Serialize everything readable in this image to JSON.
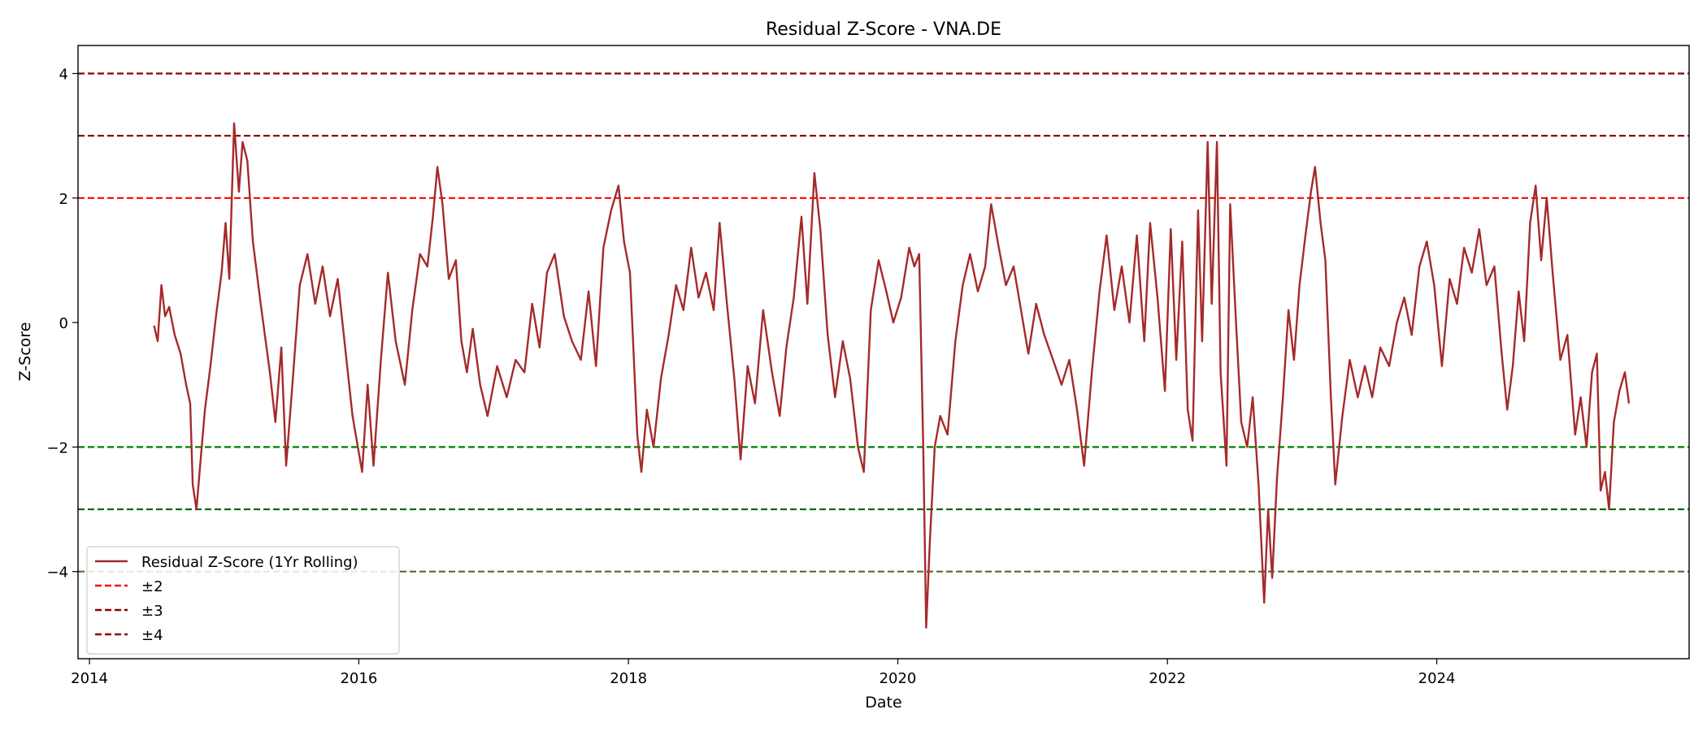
{
  "chart_data": {
    "type": "line",
    "title": "Residual Z-Score - VNA.DE",
    "xlabel": "Date",
    "ylabel": "Z-Score",
    "xlim": [
      "2013-12-01",
      "2025-11-15"
    ],
    "ylim": [
      -5.4,
      4.45
    ],
    "xticks": [
      "2014",
      "2016",
      "2018",
      "2020",
      "2022",
      "2024"
    ],
    "yticks": [
      4,
      2,
      0,
      -2,
      -4
    ],
    "ytick_labels": [
      "4",
      "2",
      "0",
      "−2",
      "−4"
    ],
    "grid": false,
    "legend_placement": "lower-left",
    "series": [
      {
        "name": "Residual Z-Score (1Yr Rolling)",
        "color": "#a52a2a",
        "points": [
          [
            "2014-06-25",
            -0.05
          ],
          [
            "2014-07-05",
            -0.3
          ],
          [
            "2014-07-15",
            0.6
          ],
          [
            "2014-07-25",
            0.1
          ],
          [
            "2014-08-05",
            0.25
          ],
          [
            "2014-08-20",
            -0.2
          ],
          [
            "2014-09-05",
            -0.5
          ],
          [
            "2014-09-20",
            -1.0
          ],
          [
            "2014-10-01",
            -1.3
          ],
          [
            "2014-10-08",
            -2.6
          ],
          [
            "2014-10-18",
            -3.0
          ],
          [
            "2014-10-28",
            -2.3
          ],
          [
            "2014-11-10",
            -1.4
          ],
          [
            "2014-11-25",
            -0.7
          ],
          [
            "2014-12-10",
            0.1
          ],
          [
            "2014-12-25",
            0.8
          ],
          [
            "2015-01-05",
            1.6
          ],
          [
            "2015-01-15",
            0.7
          ],
          [
            "2015-01-28",
            3.2
          ],
          [
            "2015-02-10",
            2.1
          ],
          [
            "2015-02-20",
            2.9
          ],
          [
            "2015-03-05",
            2.6
          ],
          [
            "2015-03-20",
            1.3
          ],
          [
            "2015-04-10",
            0.3
          ],
          [
            "2015-05-05",
            -0.8
          ],
          [
            "2015-05-20",
            -1.6
          ],
          [
            "2015-06-05",
            -0.4
          ],
          [
            "2015-06-18",
            -2.3
          ],
          [
            "2015-07-05",
            -1.0
          ],
          [
            "2015-07-25",
            0.6
          ],
          [
            "2015-08-15",
            1.1
          ],
          [
            "2015-09-05",
            0.3
          ],
          [
            "2015-09-25",
            0.9
          ],
          [
            "2015-10-15",
            0.1
          ],
          [
            "2015-11-05",
            0.7
          ],
          [
            "2015-11-25",
            -0.4
          ],
          [
            "2015-12-15",
            -1.5
          ],
          [
            "2016-01-10",
            -2.4
          ],
          [
            "2016-01-25",
            -1.0
          ],
          [
            "2016-02-10",
            -2.3
          ],
          [
            "2016-03-01",
            -0.6
          ],
          [
            "2016-03-20",
            0.8
          ],
          [
            "2016-04-10",
            -0.3
          ],
          [
            "2016-05-05",
            -1.0
          ],
          [
            "2016-05-25",
            0.2
          ],
          [
            "2016-06-15",
            1.1
          ],
          [
            "2016-07-05",
            0.9
          ],
          [
            "2016-07-20",
            1.7
          ],
          [
            "2016-08-01",
            2.5
          ],
          [
            "2016-08-15",
            1.9
          ],
          [
            "2016-09-01",
            0.7
          ],
          [
            "2016-09-20",
            1.0
          ],
          [
            "2016-10-05",
            -0.3
          ],
          [
            "2016-10-20",
            -0.8
          ],
          [
            "2016-11-05",
            -0.1
          ],
          [
            "2016-11-25",
            -1.0
          ],
          [
            "2016-12-15",
            -1.5
          ],
          [
            "2017-01-10",
            -0.7
          ],
          [
            "2017-02-05",
            -1.2
          ],
          [
            "2017-03-01",
            -0.6
          ],
          [
            "2017-03-25",
            -0.8
          ],
          [
            "2017-04-15",
            0.3
          ],
          [
            "2017-05-05",
            -0.4
          ],
          [
            "2017-05-25",
            0.8
          ],
          [
            "2017-06-15",
            1.1
          ],
          [
            "2017-07-10",
            0.1
          ],
          [
            "2017-08-01",
            -0.3
          ],
          [
            "2017-08-25",
            -0.6
          ],
          [
            "2017-09-15",
            0.5
          ],
          [
            "2017-10-05",
            -0.7
          ],
          [
            "2017-10-25",
            1.2
          ],
          [
            "2017-11-15",
            1.8
          ],
          [
            "2017-12-05",
            2.2
          ],
          [
            "2017-12-20",
            1.3
          ],
          [
            "2018-01-05",
            0.8
          ],
          [
            "2018-01-25",
            -1.8
          ],
          [
            "2018-02-05",
            -2.4
          ],
          [
            "2018-02-20",
            -1.4
          ],
          [
            "2018-03-10",
            -2.0
          ],
          [
            "2018-03-30",
            -0.9
          ],
          [
            "2018-04-20",
            -0.2
          ],
          [
            "2018-05-10",
            0.6
          ],
          [
            "2018-05-30",
            0.2
          ],
          [
            "2018-06-20",
            1.2
          ],
          [
            "2018-07-10",
            0.4
          ],
          [
            "2018-07-30",
            0.8
          ],
          [
            "2018-08-20",
            0.2
          ],
          [
            "2018-09-05",
            1.6
          ],
          [
            "2018-09-25",
            0.3
          ],
          [
            "2018-10-15",
            -0.9
          ],
          [
            "2018-11-01",
            -2.2
          ],
          [
            "2018-11-20",
            -0.7
          ],
          [
            "2018-12-10",
            -1.3
          ],
          [
            "2019-01-01",
            0.2
          ],
          [
            "2019-01-25",
            -0.8
          ],
          [
            "2019-02-15",
            -1.5
          ],
          [
            "2019-03-05",
            -0.4
          ],
          [
            "2019-03-25",
            0.4
          ],
          [
            "2019-04-15",
            1.7
          ],
          [
            "2019-05-01",
            0.3
          ],
          [
            "2019-05-20",
            2.4
          ],
          [
            "2019-06-05",
            1.5
          ],
          [
            "2019-06-25",
            -0.2
          ],
          [
            "2019-07-15",
            -1.2
          ],
          [
            "2019-08-05",
            -0.3
          ],
          [
            "2019-08-25",
            -0.9
          ],
          [
            "2019-09-15",
            -2.0
          ],
          [
            "2019-10-01",
            -2.4
          ],
          [
            "2019-10-20",
            0.2
          ],
          [
            "2019-11-10",
            1.0
          ],
          [
            "2019-12-01",
            0.5
          ],
          [
            "2019-12-20",
            0.0
          ],
          [
            "2020-01-10",
            0.4
          ],
          [
            "2020-02-01",
            1.2
          ],
          [
            "2020-02-15",
            0.9
          ],
          [
            "2020-02-28",
            1.1
          ],
          [
            "2020-03-10",
            -2.0
          ],
          [
            "2020-03-18",
            -4.9
          ],
          [
            "2020-03-28",
            -3.5
          ],
          [
            "2020-04-10",
            -2.0
          ],
          [
            "2020-04-25",
            -1.5
          ],
          [
            "2020-05-15",
            -1.8
          ],
          [
            "2020-06-05",
            -0.3
          ],
          [
            "2020-06-25",
            0.6
          ],
          [
            "2020-07-15",
            1.1
          ],
          [
            "2020-08-05",
            0.5
          ],
          [
            "2020-08-25",
            0.9
          ],
          [
            "2020-09-10",
            1.9
          ],
          [
            "2020-10-01",
            1.2
          ],
          [
            "2020-10-20",
            0.6
          ],
          [
            "2020-11-10",
            0.9
          ],
          [
            "2020-11-30",
            0.2
          ],
          [
            "2020-12-20",
            -0.5
          ],
          [
            "2021-01-10",
            0.3
          ],
          [
            "2021-02-01",
            -0.2
          ],
          [
            "2021-02-25",
            -0.6
          ],
          [
            "2021-03-20",
            -1.0
          ],
          [
            "2021-04-10",
            -0.6
          ],
          [
            "2021-05-01",
            -1.4
          ],
          [
            "2021-05-20",
            -2.3
          ],
          [
            "2021-06-10",
            -0.8
          ],
          [
            "2021-07-01",
            0.5
          ],
          [
            "2021-07-20",
            1.4
          ],
          [
            "2021-08-10",
            0.2
          ],
          [
            "2021-08-30",
            0.9
          ],
          [
            "2021-09-20",
            0.0
          ],
          [
            "2021-10-10",
            1.4
          ],
          [
            "2021-10-30",
            -0.3
          ],
          [
            "2021-11-15",
            1.6
          ],
          [
            "2021-12-05",
            0.4
          ],
          [
            "2021-12-25",
            -1.1
          ],
          [
            "2022-01-10",
            1.5
          ],
          [
            "2022-01-25",
            -0.6
          ],
          [
            "2022-02-10",
            1.3
          ],
          [
            "2022-02-25",
            -1.4
          ],
          [
            "2022-03-10",
            -1.9
          ],
          [
            "2022-03-25",
            1.8
          ],
          [
            "2022-04-05",
            -0.3
          ],
          [
            "2022-04-20",
            2.9
          ],
          [
            "2022-05-01",
            0.3
          ],
          [
            "2022-05-15",
            2.9
          ],
          [
            "2022-05-25",
            -0.8
          ],
          [
            "2022-06-10",
            -2.3
          ],
          [
            "2022-06-20",
            1.9
          ],
          [
            "2022-07-05",
            0.1
          ],
          [
            "2022-07-20",
            -1.6
          ],
          [
            "2022-08-05",
            -2.0
          ],
          [
            "2022-08-20",
            -1.2
          ],
          [
            "2022-09-05",
            -2.6
          ],
          [
            "2022-09-20",
            -4.5
          ],
          [
            "2022-10-01",
            -3.0
          ],
          [
            "2022-10-12",
            -4.1
          ],
          [
            "2022-10-25",
            -2.5
          ],
          [
            "2022-11-10",
            -1.2
          ],
          [
            "2022-11-25",
            0.2
          ],
          [
            "2022-12-10",
            -0.6
          ],
          [
            "2022-12-25",
            0.6
          ],
          [
            "2023-01-10",
            1.4
          ],
          [
            "2023-01-25",
            2.1
          ],
          [
            "2023-02-05",
            2.5
          ],
          [
            "2023-02-20",
            1.6
          ],
          [
            "2023-03-05",
            1.0
          ],
          [
            "2023-03-20",
            -1.2
          ],
          [
            "2023-04-01",
            -2.6
          ],
          [
            "2023-04-20",
            -1.5
          ],
          [
            "2023-05-10",
            -0.6
          ],
          [
            "2023-06-01",
            -1.2
          ],
          [
            "2023-06-20",
            -0.7
          ],
          [
            "2023-07-10",
            -1.2
          ],
          [
            "2023-08-01",
            -0.4
          ],
          [
            "2023-08-25",
            -0.7
          ],
          [
            "2023-09-15",
            0.0
          ],
          [
            "2023-10-05",
            0.4
          ],
          [
            "2023-10-25",
            -0.2
          ],
          [
            "2023-11-15",
            0.9
          ],
          [
            "2023-12-05",
            1.3
          ],
          [
            "2023-12-25",
            0.6
          ],
          [
            "2024-01-15",
            -0.7
          ],
          [
            "2024-02-05",
            0.7
          ],
          [
            "2024-02-25",
            0.3
          ],
          [
            "2024-03-15",
            1.2
          ],
          [
            "2024-04-05",
            0.8
          ],
          [
            "2024-04-25",
            1.5
          ],
          [
            "2024-05-15",
            0.6
          ],
          [
            "2024-06-05",
            0.9
          ],
          [
            "2024-06-25",
            -0.5
          ],
          [
            "2024-07-10",
            -1.4
          ],
          [
            "2024-07-25",
            -0.7
          ],
          [
            "2024-08-10",
            0.5
          ],
          [
            "2024-08-25",
            -0.3
          ],
          [
            "2024-09-10",
            1.6
          ],
          [
            "2024-09-25",
            2.2
          ],
          [
            "2024-10-10",
            1.0
          ],
          [
            "2024-10-25",
            2.0
          ],
          [
            "2024-11-10",
            0.8
          ],
          [
            "2024-12-01",
            -0.6
          ],
          [
            "2024-12-20",
            -0.2
          ],
          [
            "2025-01-10",
            -1.8
          ],
          [
            "2025-01-25",
            -1.2
          ],
          [
            "2025-02-10",
            -2.0
          ],
          [
            "2025-02-25",
            -0.8
          ],
          [
            "2025-03-10",
            -0.5
          ],
          [
            "2025-03-20",
            -2.7
          ],
          [
            "2025-04-01",
            -2.4
          ],
          [
            "2025-04-12",
            -3.0
          ],
          [
            "2025-04-25",
            -1.6
          ],
          [
            "2025-05-10",
            -1.1
          ],
          [
            "2025-05-25",
            -0.8
          ],
          [
            "2025-06-05",
            -1.3
          ]
        ]
      }
    ],
    "reference_lines": [
      {
        "y": 2,
        "color": "#ff0000",
        "dash": true
      },
      {
        "y": 3,
        "color": "#8b0000",
        "dash": true
      },
      {
        "y": 4,
        "color": "#8b0000",
        "dash": true
      },
      {
        "y": -2,
        "color": "#008000",
        "dash": true
      },
      {
        "y": -3,
        "color": "#006400",
        "dash": true
      },
      {
        "y": -4,
        "color": "#556b2f",
        "dash": true
      }
    ],
    "legend": [
      {
        "label": "Residual Z-Score (1Yr Rolling)",
        "color": "#a52a2a",
        "dash": false
      },
      {
        "label": "±2",
        "color": "#ff0000",
        "dash": true
      },
      {
        "label": "±3",
        "color": "#8b0000",
        "dash": true
      },
      {
        "label": "±4",
        "color": "#8b0000",
        "dash": true
      }
    ]
  }
}
